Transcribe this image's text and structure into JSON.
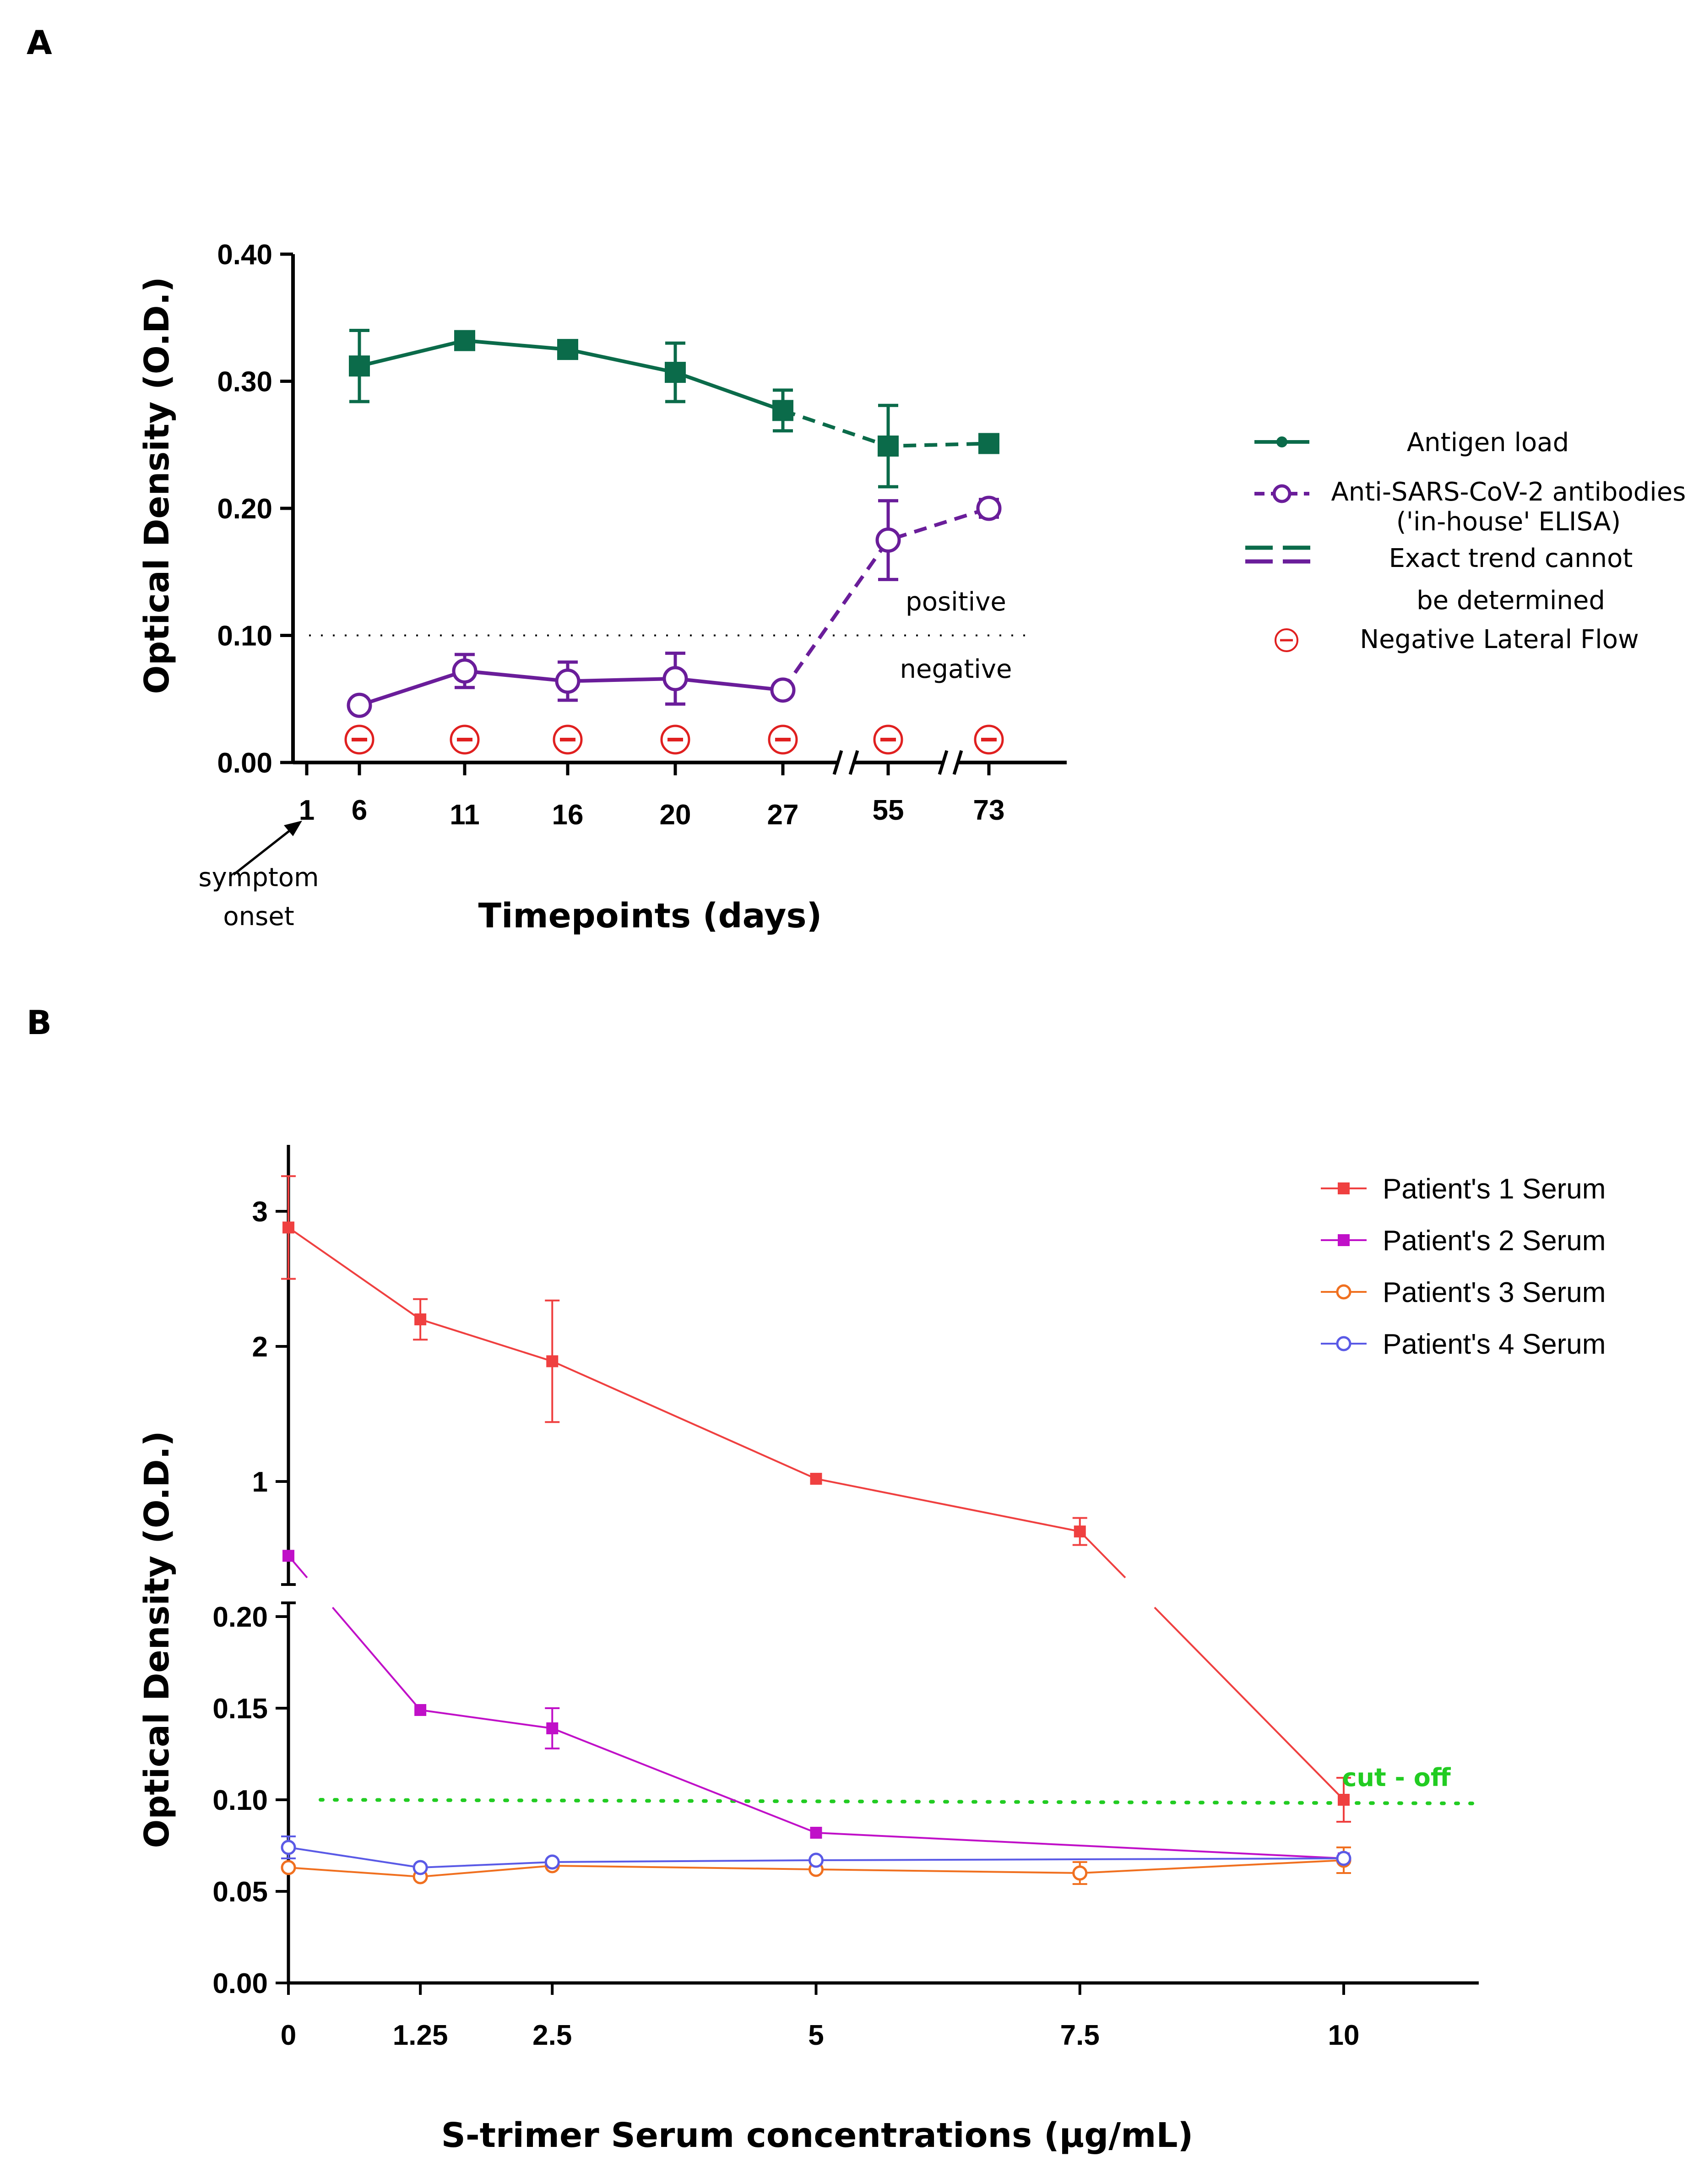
{
  "chart_data": [
    {
      "panel": "A",
      "type": "line",
      "xlabel": "Timepoints (days)",
      "ylabel": "Optical Density (O.D.)",
      "ylim": [
        0,
        0.4
      ],
      "yticks": [
        "0.00",
        "0.10",
        "0.20",
        "0.30",
        "0.40"
      ],
      "x_categories": [
        "1",
        "6",
        "11",
        "16",
        "20",
        "27",
        "55",
        "73"
      ],
      "annotation_symptom": "symptom onset",
      "threshold": 0.1,
      "threshold_above_label": "positive",
      "threshold_below_label": "negative",
      "series": [
        {
          "name": "Antigen load",
          "color": "#0b6b4a",
          "marker": "filled-square",
          "x": [
            "6",
            "11",
            "16",
            "20",
            "27",
            "55",
            "73"
          ],
          "values": [
            0.312,
            0.332,
            0.325,
            0.307,
            0.277,
            0.249,
            0.251
          ],
          "errors": [
            0.028,
            0.005,
            0.004,
            0.023,
            0.016,
            0.032,
            0.004
          ],
          "dashed_from_index": 4
        },
        {
          "name": "Anti-SARS-CoV-2 antibodies ('in-house' ELISA)",
          "color": "#6a1d9a",
          "marker": "open-circle",
          "x": [
            "6",
            "11",
            "16",
            "20",
            "27",
            "55",
            "73"
          ],
          "values": [
            0.045,
            0.072,
            0.064,
            0.066,
            0.057,
            0.175,
            0.2
          ],
          "errors": [
            0.0,
            0.013,
            0.015,
            0.02,
            0.0,
            0.031,
            0.007
          ],
          "dashed_from_index": 4
        }
      ],
      "lateral_flow_x": [
        "6",
        "11",
        "16",
        "20",
        "27",
        "55",
        "73"
      ],
      "legend": [
        {
          "label": "Antigen load"
        },
        {
          "label": "Anti-SARS-CoV-2 antibodies",
          "label2": "('in-house' ELISA)"
        },
        {
          "label": "Exact trend cannot",
          "label2": "be determined"
        },
        {
          "label": "Negative Lateral Flow"
        }
      ]
    },
    {
      "panel": "B",
      "type": "line",
      "xlabel": "S-trimer Serum concentrations (µg/mL)",
      "ylabel": "Optical Density (O.D.)",
      "x": [
        0,
        1.25,
        2.5,
        5,
        7.5,
        10
      ],
      "xtick_labels": [
        "0",
        "1.25",
        "2.5",
        "5",
        "7.5",
        "10"
      ],
      "upper_ylim": [
        0.2,
        3.4
      ],
      "upper_yticks": [
        "1",
        "2",
        "3"
      ],
      "lower_ylim": [
        0,
        0.2
      ],
      "lower_yticks": [
        "0.00",
        "0.05",
        "0.10",
        "0.15",
        "0.20"
      ],
      "cutoff": 0.1,
      "cutoff_label": "cut - off",
      "series": [
        {
          "name": "Patient's 1 Serum",
          "color": "#ef4040",
          "marker": "filled-square",
          "values": [
            2.88,
            2.2,
            1.89,
            1.02,
            0.63,
            0.1
          ],
          "errors": [
            0.38,
            0.15,
            0.45,
            0.0,
            0.1,
            0.012
          ]
        },
        {
          "name": "Patient's 2 Serum",
          "color": "#c010c8",
          "marker": "filled-square",
          "values": [
            0.45,
            0.149,
            0.139,
            0.082,
            null,
            0.068
          ],
          "errors": [
            0.0,
            0.0,
            0.011,
            0.0,
            null,
            0.0
          ]
        },
        {
          "name": "Patient's 3 Serum",
          "color": "#f07020",
          "marker": "open-circle",
          "values": [
            0.063,
            0.058,
            0.064,
            0.062,
            0.06,
            0.067
          ],
          "errors": [
            0.0,
            0.0,
            0.0,
            0.0,
            0.006,
            0.007
          ]
        },
        {
          "name": "Patient's 4 Serum",
          "color": "#5a5ae6",
          "marker": "open-circle",
          "values": [
            0.074,
            0.063,
            0.066,
            0.067,
            null,
            0.068
          ],
          "errors": [
            0.006,
            0.0,
            0.0,
            0.0,
            null,
            0.0
          ]
        }
      ]
    }
  ]
}
